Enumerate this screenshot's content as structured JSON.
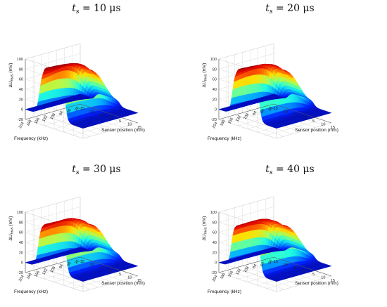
{
  "chart_data": [
    {
      "type": "surface",
      "title": {
        "symbol": "t",
        "subscript": "s",
        "equals": " = ",
        "value": "10 μs"
      },
      "xlabel": "Sensor position (mm)",
      "ylabel": "Frequency (kHz)",
      "zlabel": "ΔU",
      "zlabel_sub": "RMS",
      "zlabel_unit": " (mV)",
      "x_ticks": [
        "-15",
        "-10",
        "-5",
        "0",
        "5",
        "10",
        "15"
      ],
      "y_ticks": [
        "36",
        "60",
        "84",
        "108",
        "132",
        "156",
        "180",
        "204"
      ],
      "z_ticks": [
        "-20",
        "0",
        "20",
        "40",
        "60",
        "80",
        "100"
      ],
      "xlim": [
        -15,
        15
      ],
      "ylim": [
        36,
        204
      ],
      "zlim": [
        -20,
        100
      ],
      "peak_mV": 97,
      "colormap": [
        "#00008f",
        "#0020ff",
        "#00a0ff",
        "#20ffdf",
        "#a0ff60",
        "#ffe000",
        "#ff6000",
        "#e00000",
        "#8f0000"
      ]
    },
    {
      "type": "surface",
      "title": {
        "symbol": "t",
        "subscript": "s",
        "equals": " = ",
        "value": "20 μs"
      },
      "xlabel": "Sensor position (mm)",
      "ylabel": "Frequency (kHz)",
      "zlabel": "ΔU",
      "zlabel_sub": "RMS",
      "zlabel_unit": " (mV)",
      "x_ticks": [
        "-15",
        "-10",
        "-5",
        "0",
        "5",
        "10",
        "15"
      ],
      "y_ticks": [
        "36",
        "60",
        "84",
        "108",
        "132",
        "156",
        "180",
        "204"
      ],
      "z_ticks": [
        "-20",
        "0",
        "20",
        "40",
        "60",
        "80",
        "100"
      ],
      "xlim": [
        -15,
        15
      ],
      "ylim": [
        36,
        204
      ],
      "zlim": [
        -20,
        100
      ],
      "peak_mV": 96,
      "colormap": [
        "#00008f",
        "#0020ff",
        "#00a0ff",
        "#20ffdf",
        "#a0ff60",
        "#ffe000",
        "#ff6000",
        "#e00000",
        "#8f0000"
      ]
    },
    {
      "type": "surface",
      "title": {
        "symbol": "t",
        "subscript": "s",
        "equals": " = ",
        "value": "30 μs"
      },
      "xlabel": "Sensor position (mm)",
      "ylabel": "Frequency (kHz)",
      "zlabel": "ΔU",
      "zlabel_sub": "RMS",
      "zlabel_unit": " (mV)",
      "x_ticks": [
        "-15",
        "-10",
        "-5",
        "0",
        "5",
        "10",
        "15"
      ],
      "y_ticks": [
        "36",
        "60",
        "84",
        "108",
        "132",
        "156",
        "180",
        "204"
      ],
      "z_ticks": [
        "-20",
        "0",
        "20",
        "40",
        "60",
        "80",
        "100"
      ],
      "xlim": [
        -15,
        15
      ],
      "ylim": [
        36,
        204
      ],
      "zlim": [
        -20,
        100
      ],
      "peak_mV": 93,
      "colormap": [
        "#00008f",
        "#0020ff",
        "#00a0ff",
        "#20ffdf",
        "#a0ff60",
        "#ffe000",
        "#ff6000",
        "#e00000",
        "#8f0000"
      ]
    },
    {
      "type": "surface",
      "title": {
        "symbol": "t",
        "subscript": "s",
        "equals": " = ",
        "value": "40 μs"
      },
      "xlabel": "Sensor position (mm)",
      "ylabel": "Frequency (kHz)",
      "zlabel": "ΔU",
      "zlabel_sub": "RMS",
      "zlabel_unit": " (mV)",
      "x_ticks": [
        "-15",
        "-10",
        "-5",
        "0",
        "5",
        "10",
        "15"
      ],
      "y_ticks": [
        "36",
        "60",
        "84",
        "108",
        "132",
        "156",
        "180",
        "204"
      ],
      "z_ticks": [
        "-20",
        "0",
        "20",
        "40",
        "60",
        "80",
        "100"
      ],
      "xlim": [
        -15,
        15
      ],
      "ylim": [
        36,
        204
      ],
      "zlim": [
        -20,
        100
      ],
      "peak_mV": 91,
      "colormap": [
        "#00008f",
        "#0020ff",
        "#00a0ff",
        "#20ffdf",
        "#a0ff60",
        "#ffe000",
        "#ff6000",
        "#e00000",
        "#8f0000"
      ]
    }
  ]
}
